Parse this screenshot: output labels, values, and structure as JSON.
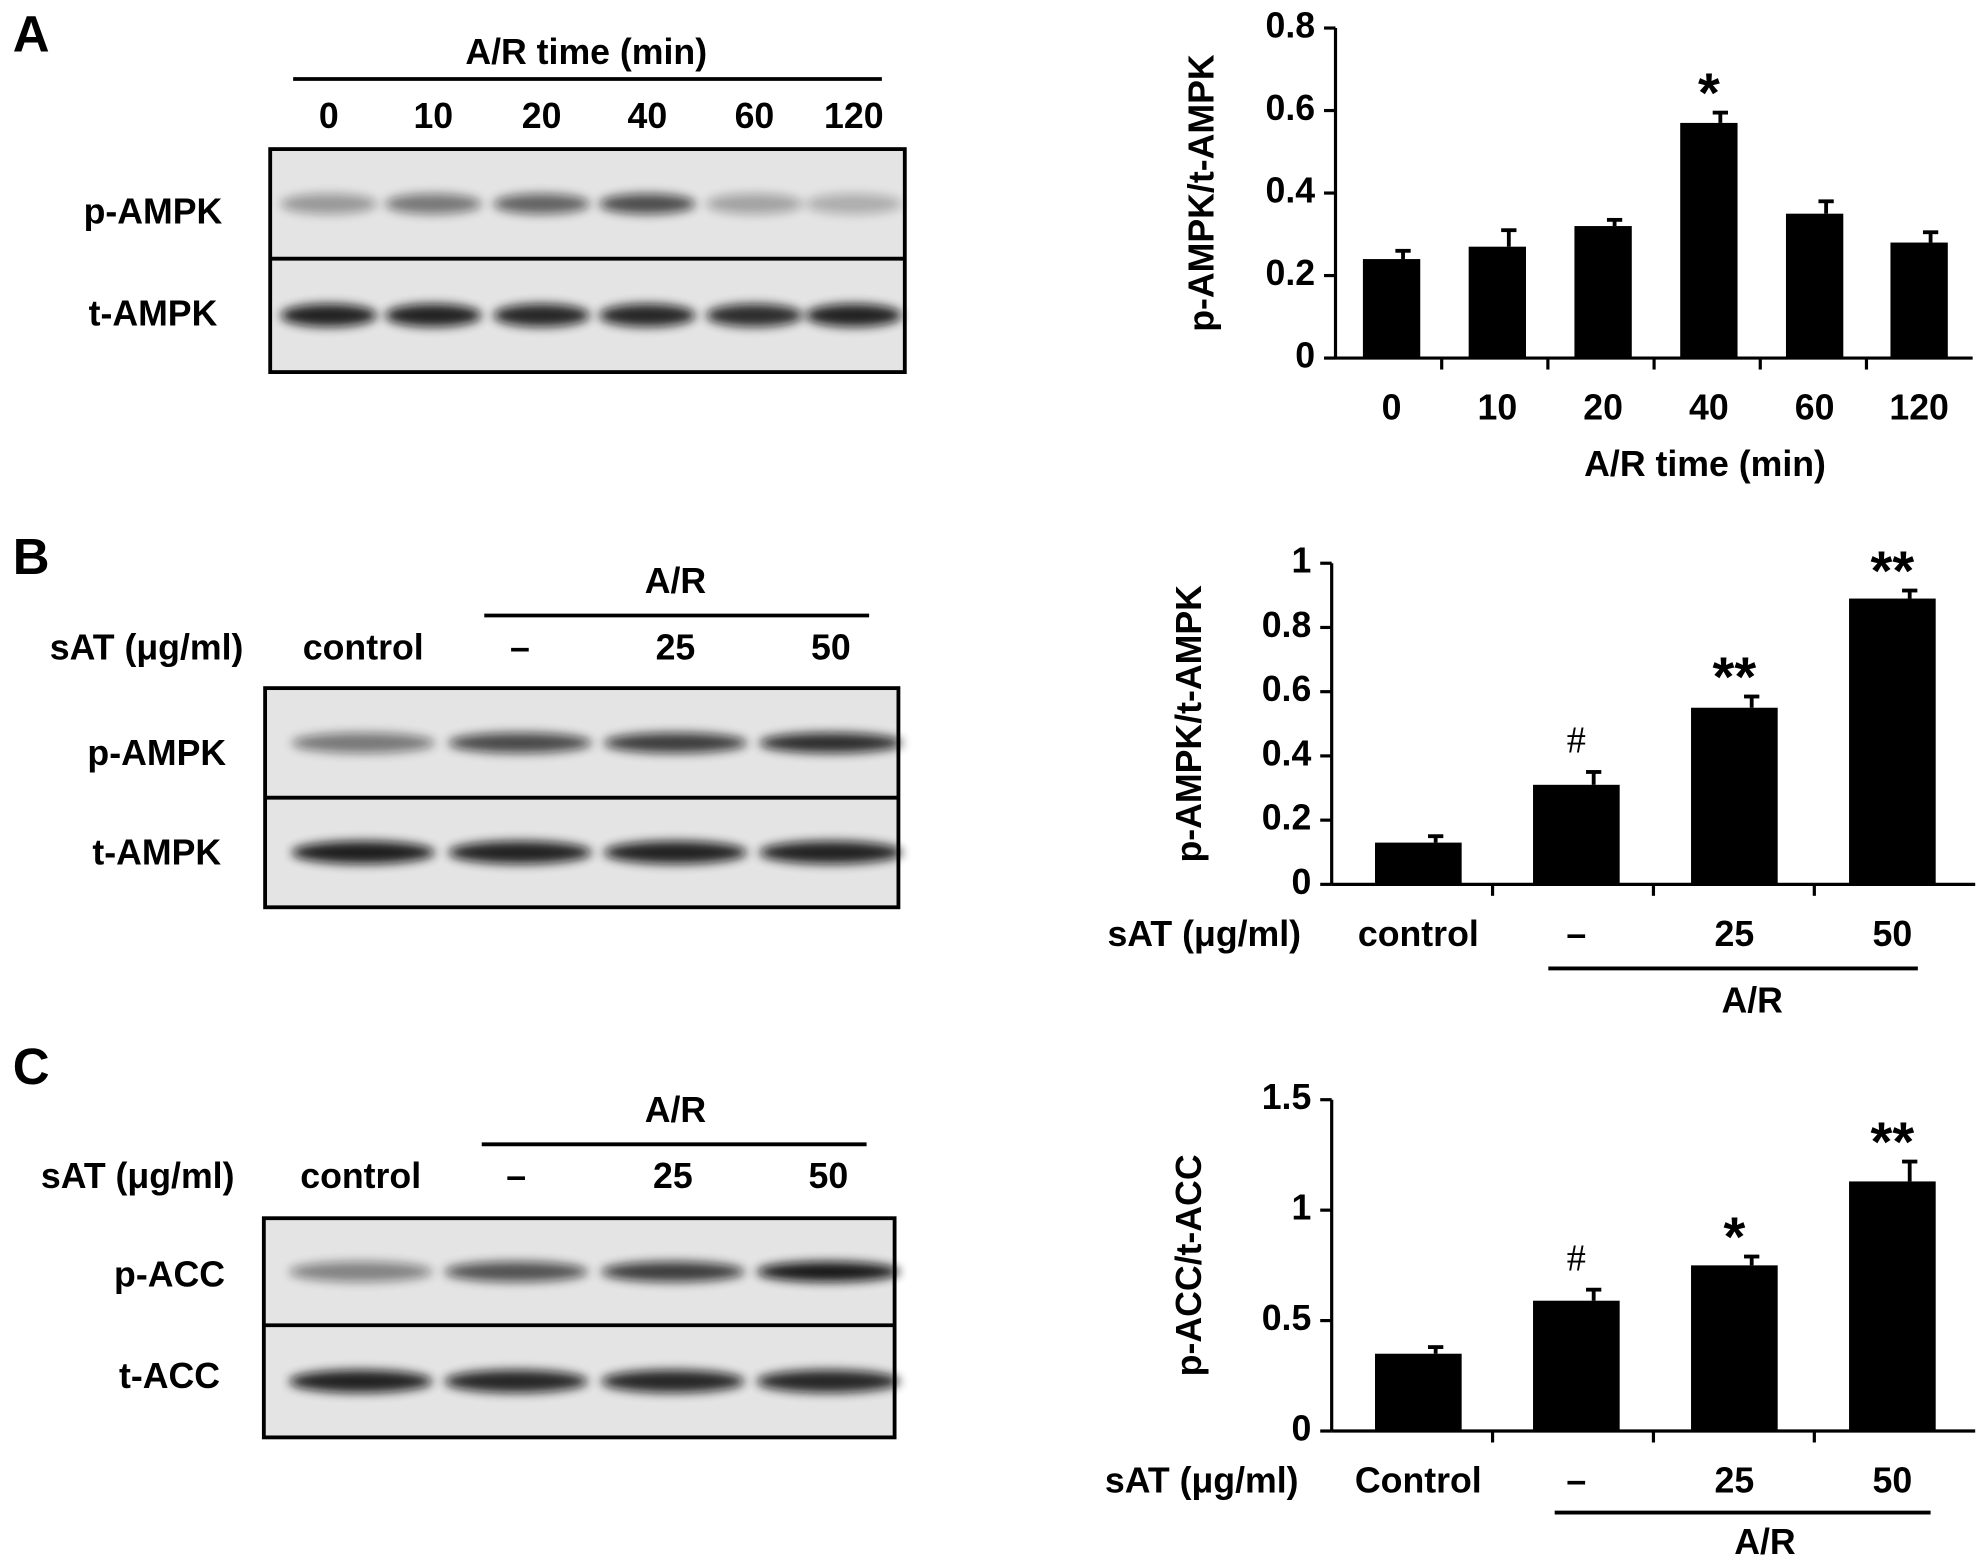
{
  "chart_data": [
    {
      "type": "bar",
      "panel": "A",
      "ylabel": "p-AMPK/t-AMPK",
      "xlabel": "A/R time (min)",
      "categories": [
        "0",
        "10",
        "20",
        "40",
        "60",
        "120"
      ],
      "values": [
        0.24,
        0.27,
        0.32,
        0.57,
        0.35,
        0.28
      ],
      "errors": [
        0.02,
        0.04,
        0.015,
        0.025,
        0.03,
        0.025
      ],
      "annotations": [
        null,
        null,
        null,
        "*",
        null,
        null
      ],
      "ylim": [
        0,
        0.8
      ],
      "yticks": [
        0,
        0.2,
        0.4,
        0.6,
        0.8
      ],
      "color": "#000000",
      "blot": {
        "header": "A/R time (min)",
        "lanes": [
          "0",
          "10",
          "20",
          "40",
          "60",
          "120"
        ],
        "rows": [
          "p-AMPK",
          "t-AMPK"
        ]
      }
    },
    {
      "type": "bar",
      "panel": "B",
      "ylabel": "p-AMPK/t-AMPK",
      "category_prefix": "sAT (μg/ml)",
      "group_label": "A/R",
      "categories": [
        "control",
        "–",
        "25",
        "50"
      ],
      "values": [
        0.13,
        0.31,
        0.55,
        0.89
      ],
      "errors": [
        0.02,
        0.04,
        0.035,
        0.025
      ],
      "annotations": [
        null,
        "#",
        "**",
        "**"
      ],
      "ylim": [
        0,
        1
      ],
      "yticks": [
        0,
        0.2,
        0.4,
        0.6,
        0.8,
        1
      ],
      "color": "#000000",
      "blot": {
        "header": "A/R",
        "prefix": "sAT (μg/ml)",
        "lanes": [
          "control",
          "–",
          "25",
          "50"
        ],
        "rows": [
          "p-AMPK",
          "t-AMPK"
        ]
      }
    },
    {
      "type": "bar",
      "panel": "C",
      "ylabel": "p-ACC/t-ACC",
      "category_prefix": "sAT (μg/ml)",
      "group_label": "A/R",
      "categories": [
        "Control",
        "–",
        "25",
        "50"
      ],
      "values": [
        0.35,
        0.59,
        0.75,
        1.13
      ],
      "errors": [
        0.03,
        0.05,
        0.04,
        0.09
      ],
      "annotations": [
        null,
        "#",
        "*",
        "**"
      ],
      "ylim": [
        0,
        1.5
      ],
      "yticks": [
        0,
        0.5,
        1,
        1.5
      ],
      "color": "#000000",
      "blot": {
        "header": "A/R",
        "prefix": "sAT (μg/ml)",
        "lanes": [
          "control",
          "–",
          "25",
          "50"
        ],
        "rows": [
          "p-ACC",
          "t-ACC"
        ]
      }
    }
  ]
}
